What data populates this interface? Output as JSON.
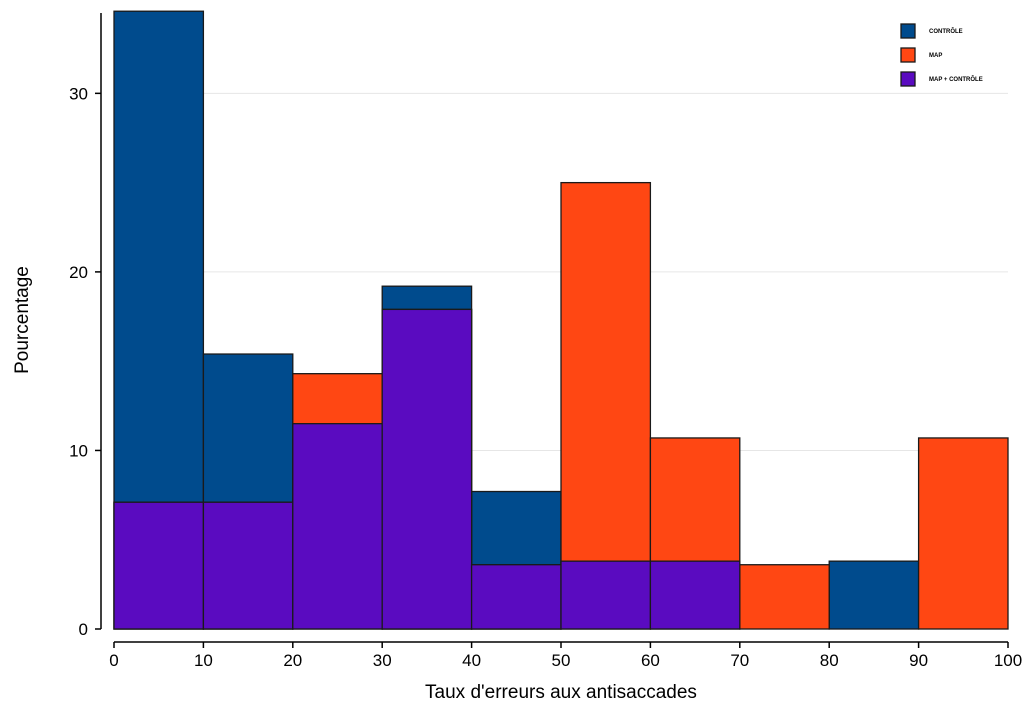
{
  "chart_data": {
    "type": "bar",
    "subtype": "overlapping-histogram",
    "xlabel": "Taux d'erreurs aux antisaccades",
    "ylabel": "Pourcentage",
    "xlim": [
      0,
      100
    ],
    "ylim": [
      0,
      34.5
    ],
    "x_ticks": [
      0,
      10,
      20,
      30,
      40,
      50,
      60,
      70,
      80,
      90,
      100
    ],
    "y_ticks": [
      0,
      10,
      20,
      30
    ],
    "grid": "horizontal",
    "legend_position": "top-right",
    "bin_edges": [
      0,
      10,
      20,
      30,
      40,
      50,
      60,
      70,
      80,
      90,
      100
    ],
    "series": [
      {
        "name": "CONTRÔLE",
        "color": "#004b8d",
        "values": [
          34.6,
          15.4,
          0,
          19.2,
          7.7,
          0,
          0,
          0,
          3.8,
          0
        ]
      },
      {
        "name": "MAP",
        "color": "#ff4713",
        "values": [
          7.1,
          7.1,
          14.3,
          17.9,
          3.6,
          25.0,
          10.7,
          3.6,
          0,
          10.7
        ]
      },
      {
        "name": "MAP + CONTRÔLE",
        "color": "#5a0bc0",
        "values": [
          7.1,
          7.1,
          11.5,
          17.9,
          3.6,
          3.8,
          3.8,
          0,
          0,
          0
        ]
      }
    ]
  }
}
